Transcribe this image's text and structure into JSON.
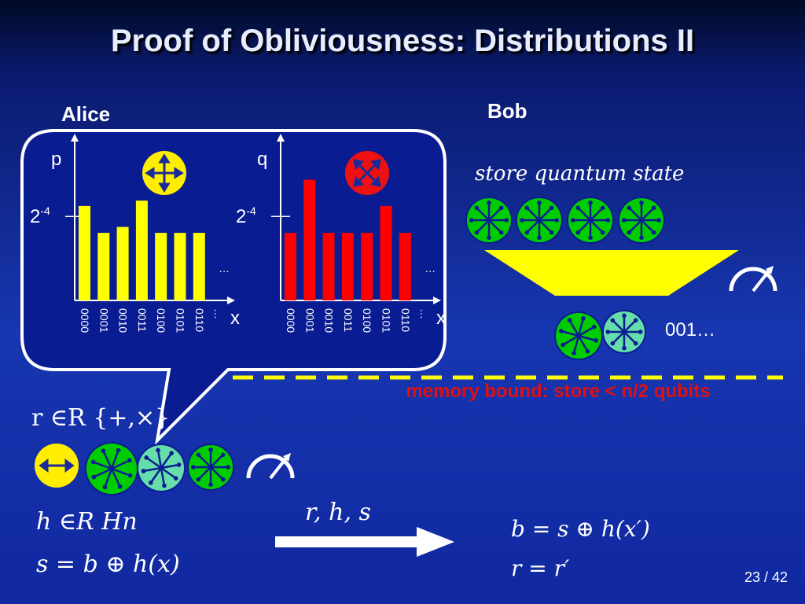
{
  "title": "Proof of Obliviousness: Distributions II",
  "alice": {
    "heading": "Alice",
    "r_line": "r ∈R {+,×}",
    "h_line": "h ∈R Hn",
    "s_line": "s = b ⊕ h(x)"
  },
  "bob": {
    "heading": "Bob",
    "store_line": "store quantum state",
    "result": "001…",
    "b_line": "b = s ⊕ h(x′)",
    "r_line": "r = r′"
  },
  "message": "r, h, s",
  "memory_bound": "memory bound: store < n/2 qubits",
  "page_number": "23 / 42",
  "colors": {
    "alice_bars": "#ffff00",
    "bob_bars": "#ff0000",
    "qubit_green": "#00cc00",
    "qubit_light": "#66ddaa",
    "memory_text": "#e01010",
    "dash": "#ffff00"
  },
  "icons": [
    "plus-basis-icon",
    "cross-basis-icon",
    "measurement-meter-icon",
    "qubit-star-icon"
  ],
  "chart_data": [
    {
      "type": "bar",
      "ylabel": "p",
      "xlabel": "x",
      "categories": [
        "0000",
        "0001",
        "0010",
        "0011",
        "0100",
        "0101",
        "0110"
      ],
      "values": [
        0.0703,
        0.0503,
        0.0547,
        0.0743,
        0.0503,
        0.0503,
        0.0503
      ],
      "ref_level": "2",
      "ref_exponent": "-4",
      "ref_value": 0.0625,
      "ellipsis": "…",
      "ylim": [
        0,
        0.12
      ]
    },
    {
      "type": "bar",
      "ylabel": "q",
      "xlabel": "x",
      "categories": [
        "0000",
        "0001",
        "0010",
        "0011",
        "0100",
        "0101",
        "0110"
      ],
      "values": [
        0.0503,
        0.0898,
        0.0503,
        0.0503,
        0.0503,
        0.0703,
        0.0503
      ],
      "ref_level": "2",
      "ref_exponent": "-4",
      "ref_value": 0.0625,
      "ellipsis": "…",
      "ylim": [
        0,
        0.12
      ]
    }
  ]
}
